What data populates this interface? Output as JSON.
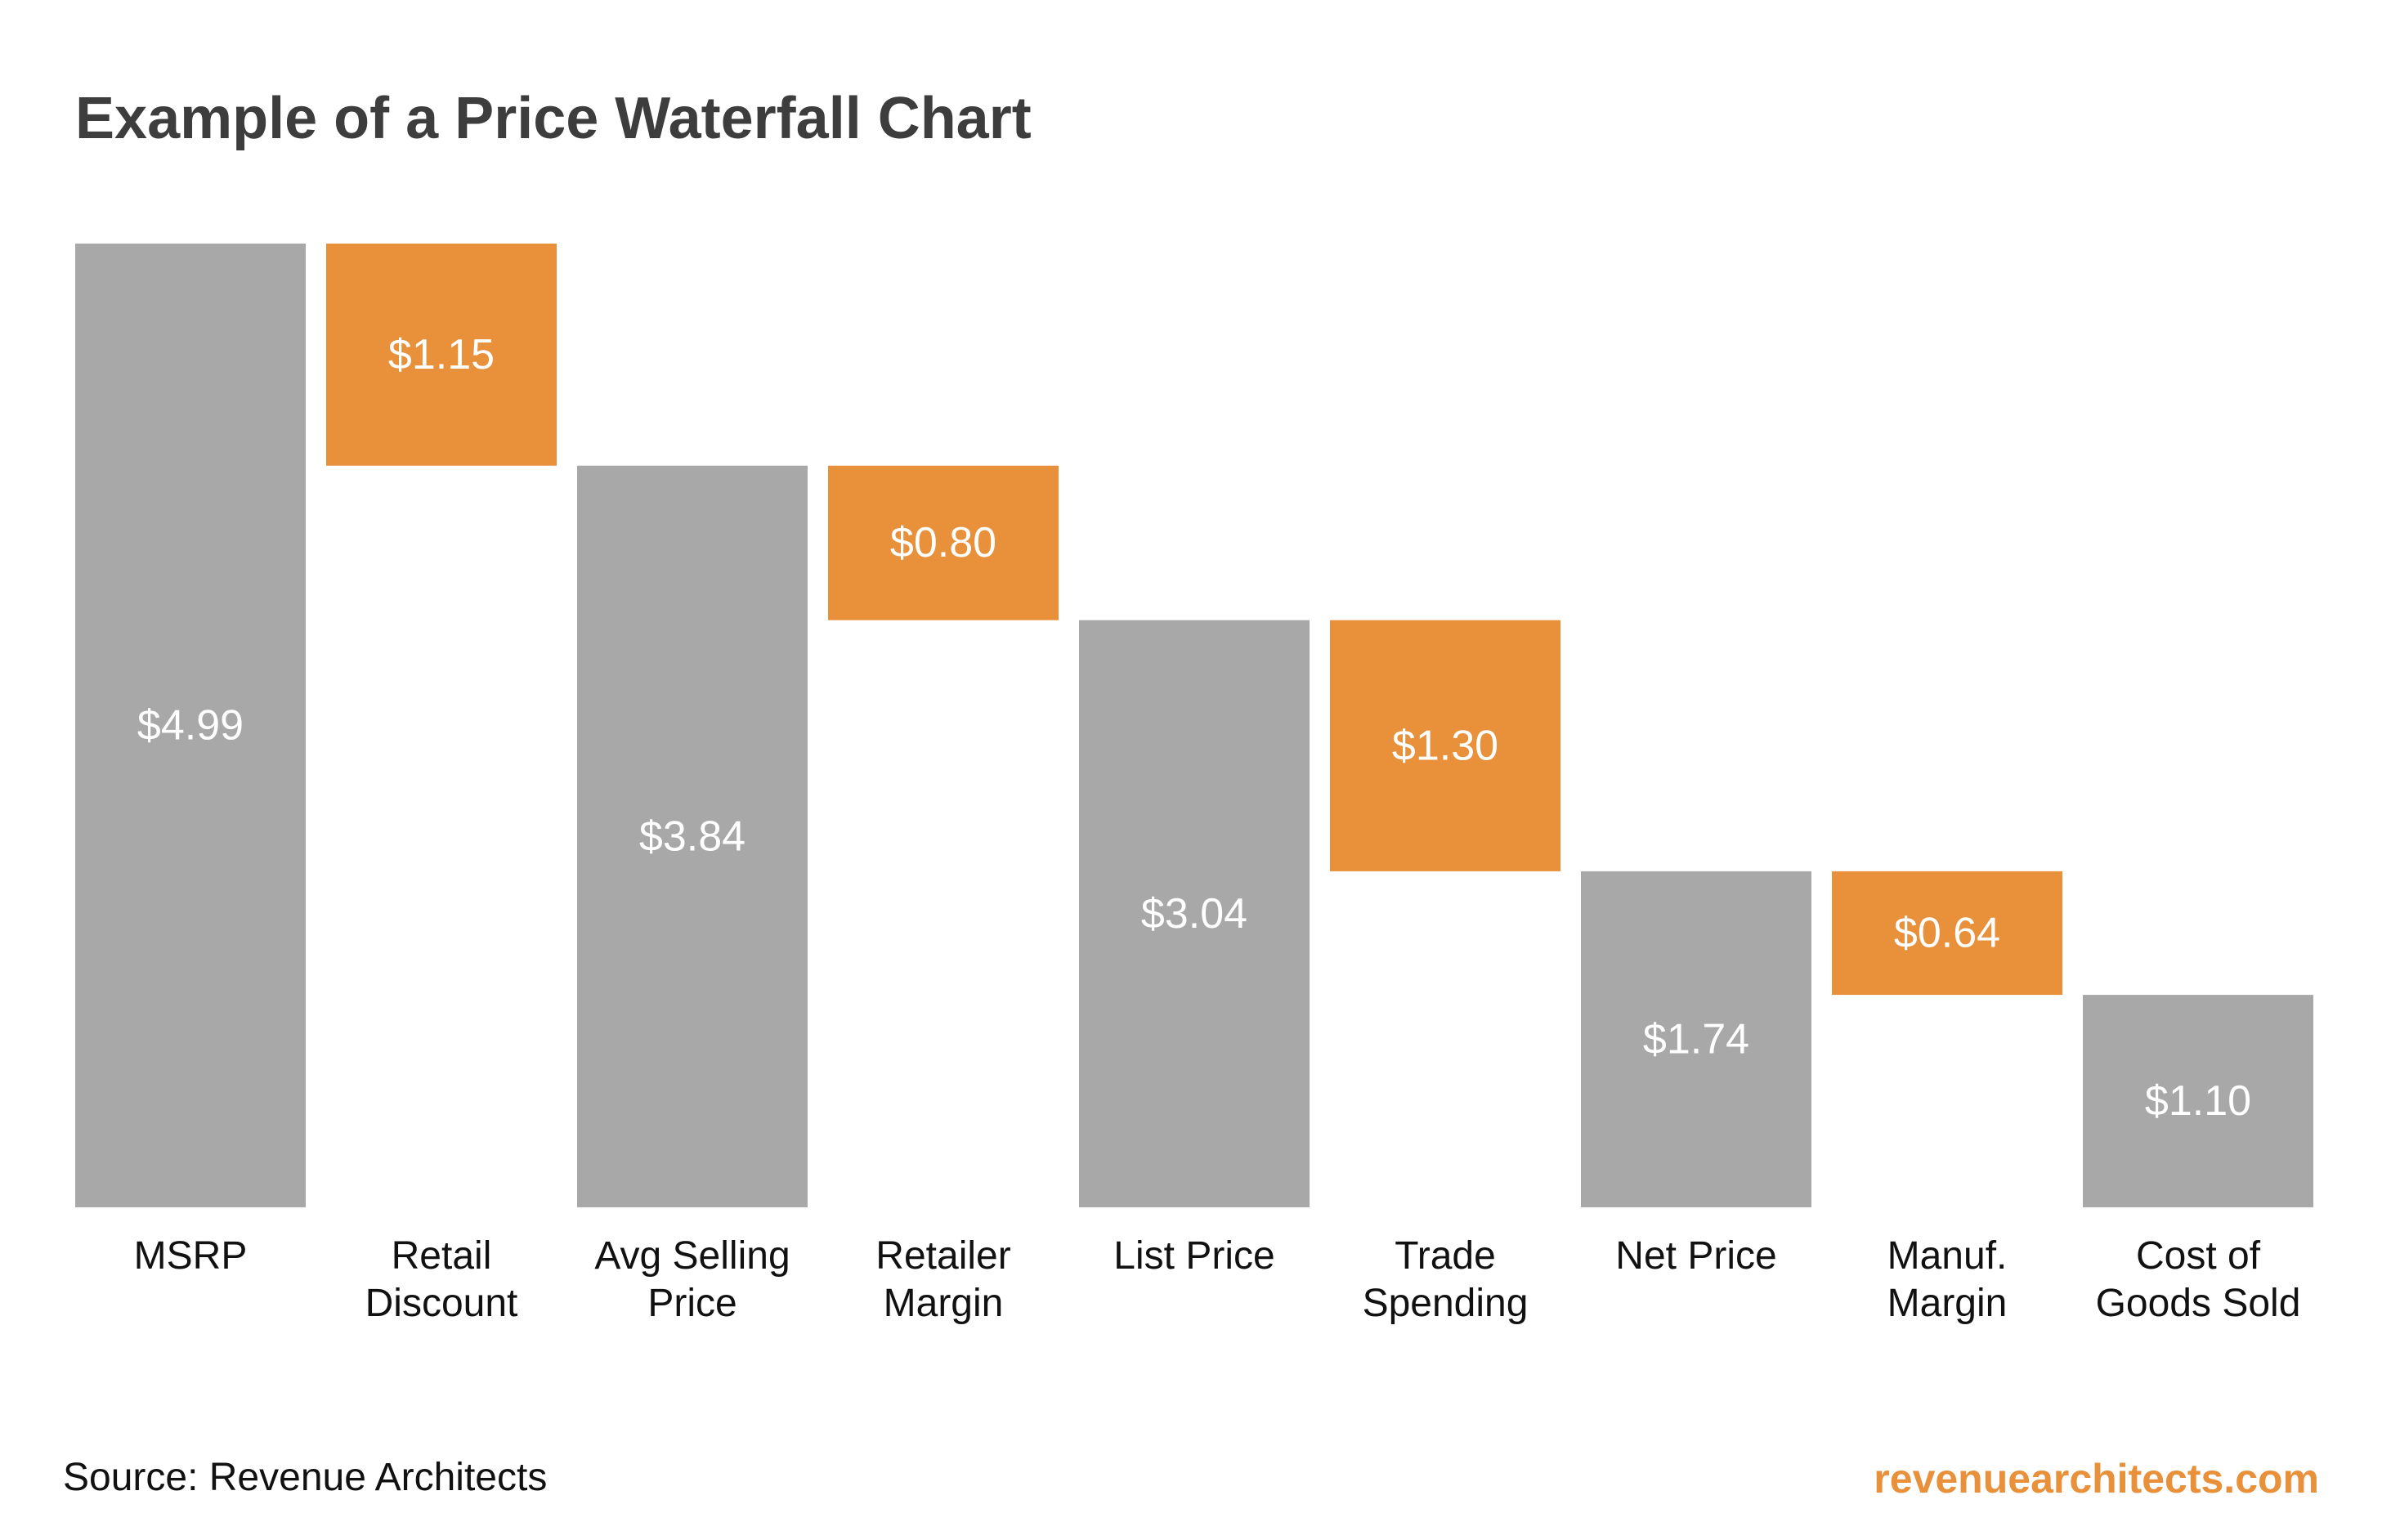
{
  "title": "Example of a Price Waterfall Chart",
  "footer": {
    "source": "Source: Revenue Architects",
    "website": "revenuearchitects.com"
  },
  "colors": {
    "total_bar": "#a8a8a8",
    "delta_bar": "#e8903a",
    "bar_label": "#ffffff",
    "axis_label": "#111111",
    "title": "#3d3d3d",
    "brand": "#e8903a"
  },
  "chart_data": {
    "type": "waterfall",
    "currency_format": "$0.00",
    "ylim": [
      0,
      4.99
    ],
    "grid": false,
    "legend": "none",
    "xlabel": "",
    "ylabel": "",
    "categories": [
      [
        "MSRP"
      ],
      [
        "Retail",
        "Discount"
      ],
      [
        "Avg Selling",
        "Price"
      ],
      [
        "Retailer",
        "Margin"
      ],
      [
        "List Price"
      ],
      [
        "Trade",
        "Spending"
      ],
      [
        "Net Price"
      ],
      [
        "Manuf.",
        "Margin"
      ],
      [
        "Cost of",
        "Goods Sold"
      ]
    ],
    "bars": [
      {
        "kind": "total",
        "value": 4.99,
        "label": "$4.99"
      },
      {
        "kind": "decrease",
        "value": 1.15,
        "label": "$1.15"
      },
      {
        "kind": "total",
        "value": 3.84,
        "label": "$3.84"
      },
      {
        "kind": "decrease",
        "value": 0.8,
        "label": "$0.80"
      },
      {
        "kind": "total",
        "value": 3.04,
        "label": "$3.04"
      },
      {
        "kind": "decrease",
        "value": 1.3,
        "label": "$1.30"
      },
      {
        "kind": "total",
        "value": 1.74,
        "label": "$1.74"
      },
      {
        "kind": "decrease",
        "value": 0.64,
        "label": "$0.64"
      },
      {
        "kind": "total",
        "value": 1.1,
        "label": "$1.10"
      }
    ]
  }
}
